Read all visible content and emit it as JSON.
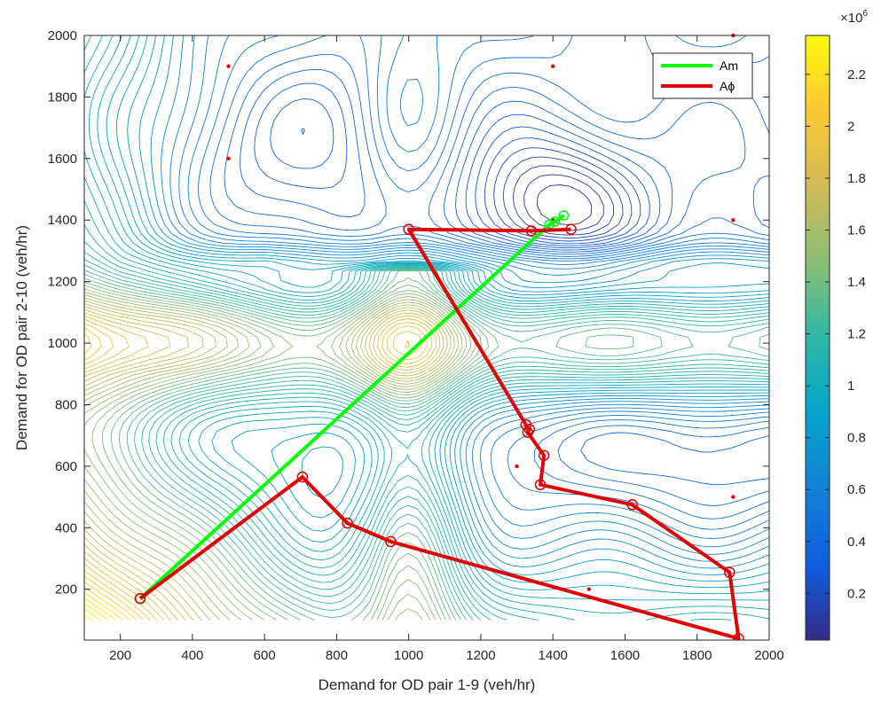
{
  "chart_data": {
    "type": "line",
    "title": "",
    "xlabel": "Demand for OD pair 1-9 (veh/hr)",
    "ylabel": "Demand for OD pair 2-10 (veh/hr)",
    "xlim": [
      100,
      2000
    ],
    "ylim": [
      35,
      2000
    ],
    "xticks": [
      200,
      400,
      600,
      800,
      1000,
      1200,
      1400,
      1600,
      1800,
      2000
    ],
    "yticks": [
      200,
      400,
      600,
      800,
      1000,
      1200,
      1400,
      1600,
      1800,
      2000
    ],
    "grid": false,
    "legend_position": "top-right",
    "series": [
      {
        "name": "Am",
        "color": "#00ff00",
        "x": [
          255,
          1390,
          1405,
          1430
        ],
        "y": [
          170,
          1385,
          1395,
          1415
        ]
      },
      {
        "name": "Aϕ",
        "color": "#e00000",
        "x": [
          1450,
          1340,
          1000,
          1325,
          1335,
          1330,
          1375,
          1365,
          1620,
          1890,
          1915,
          950,
          830,
          705,
          255
        ],
        "y": [
          1370,
          1365,
          1370,
          735,
          720,
          710,
          635,
          540,
          475,
          255,
          40,
          355,
          415,
          565,
          170
        ]
      }
    ],
    "markers": {
      "optimum_points": [
        {
          "x": 1400,
          "y": 1400
        },
        {
          "x": 500,
          "y": 1900
        },
        {
          "x": 1400,
          "y": 1900
        },
        {
          "x": 500,
          "y": 1600
        },
        {
          "x": 1900,
          "y": 1400
        },
        {
          "x": 1300,
          "y": 600
        },
        {
          "x": 1900,
          "y": 500
        },
        {
          "x": 1500,
          "y": 200
        },
        {
          "x": 1900,
          "y": 2000
        }
      ]
    },
    "contour": {
      "field": "objective",
      "colormap": "parula",
      "levels": 60,
      "colorbar": {
        "exponent_label": "×10",
        "exponent_sup": "6",
        "range": [
          0.02,
          2.35
        ],
        "ticks": [
          0.2,
          0.4,
          0.6,
          0.8,
          1,
          1.2,
          1.4,
          1.6,
          1.8,
          2,
          2.2
        ],
        "tick_labels": [
          "0.2",
          "0.4",
          "0.6",
          "0.8",
          "1",
          "1.2",
          "1.4",
          "1.6",
          "1.8",
          "2",
          "2.2"
        ]
      }
    }
  }
}
